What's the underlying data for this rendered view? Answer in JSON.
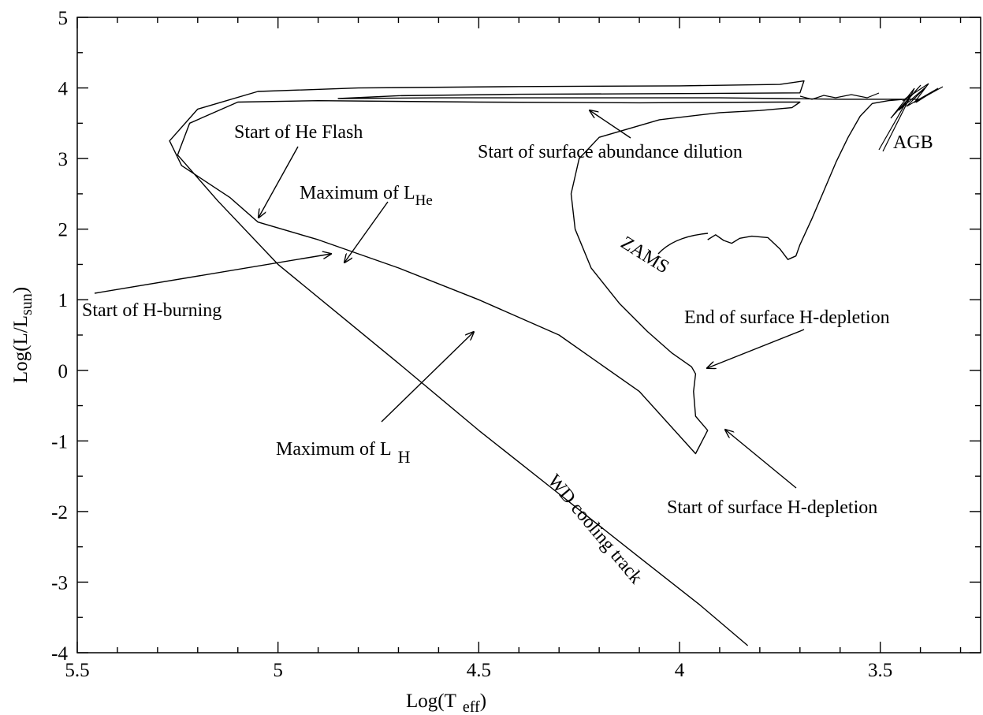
{
  "chart_data": {
    "type": "line",
    "xlim": [
      5.5,
      3.25
    ],
    "ylim": [
      -4,
      5
    ],
    "x_reversed": true,
    "grid": false,
    "xlabel": {
      "main": "Log(T",
      "sub": "eff",
      "close": ")"
    },
    "ylabel": {
      "main": "Log(L/L",
      "sub": "sun",
      "close": ")"
    },
    "x_ticks": [
      {
        "value": 5.5,
        "label": "5.5"
      },
      {
        "value": 5,
        "label": "5"
      },
      {
        "value": 4.5,
        "label": "4.5"
      },
      {
        "value": 4,
        "label": "4"
      },
      {
        "value": 3.5,
        "label": "3.5"
      }
    ],
    "y_ticks": [
      {
        "value": 5,
        "label": "5"
      },
      {
        "value": 4,
        "label": "4"
      },
      {
        "value": 3,
        "label": "3"
      },
      {
        "value": 2,
        "label": "2"
      },
      {
        "value": 1,
        "label": "1"
      },
      {
        "value": 0,
        "label": "0"
      },
      {
        "value": -1,
        "label": "-1"
      },
      {
        "value": -2,
        "label": "-2"
      },
      {
        "value": -3,
        "label": "-3"
      },
      {
        "value": -4,
        "label": "-4"
      }
    ],
    "series": [
      {
        "points": [
          [
            3.93,
            1.85
          ],
          [
            3.91,
            1.92
          ],
          [
            3.89,
            1.84
          ],
          [
            3.87,
            1.8
          ],
          [
            3.85,
            1.87
          ],
          [
            3.82,
            1.9
          ],
          [
            3.78,
            1.88
          ],
          [
            3.75,
            1.72
          ],
          [
            3.73,
            1.57
          ],
          [
            3.71,
            1.62
          ],
          [
            3.7,
            1.78
          ],
          [
            3.67,
            2.15
          ],
          [
            3.64,
            2.55
          ],
          [
            3.61,
            2.95
          ],
          [
            3.58,
            3.3
          ],
          [
            3.55,
            3.6
          ],
          [
            3.52,
            3.78
          ],
          [
            3.48,
            3.82
          ],
          [
            3.44,
            3.84
          ],
          [
            3.4,
            3.84
          ],
          [
            3.6,
            3.84
          ],
          [
            3.75,
            3.85
          ],
          [
            3.9,
            3.86
          ],
          [
            4.2,
            3.86
          ],
          [
            4.6,
            3.86
          ],
          [
            4.85,
            3.85
          ],
          [
            4.7,
            3.89
          ],
          [
            4.4,
            3.91
          ],
          [
            4.0,
            3.92
          ],
          [
            3.7,
            3.93
          ],
          [
            3.69,
            4.1
          ],
          [
            3.75,
            4.05
          ],
          [
            4.0,
            4.03
          ],
          [
            4.4,
            4.02
          ],
          [
            4.8,
            4.0
          ],
          [
            5.05,
            3.95
          ],
          [
            5.2,
            3.7
          ],
          [
            5.27,
            3.25
          ],
          [
            5.24,
            2.9
          ],
          [
            5.12,
            2.45
          ],
          [
            5.05,
            2.1
          ],
          [
            4.9,
            1.85
          ],
          [
            4.7,
            1.45
          ],
          [
            4.5,
            1.0
          ],
          [
            4.3,
            0.5
          ],
          [
            4.1,
            -0.3
          ],
          [
            3.96,
            -1.18
          ],
          [
            3.93,
            -0.85
          ],
          [
            3.96,
            -0.65
          ],
          [
            3.965,
            -0.3
          ],
          [
            3.96,
            -0.05
          ],
          [
            3.97,
            0.05
          ],
          [
            4.02,
            0.25
          ],
          [
            4.08,
            0.55
          ],
          [
            4.15,
            0.95
          ],
          [
            4.22,
            1.45
          ],
          [
            4.26,
            2.0
          ],
          [
            4.27,
            2.5
          ],
          [
            4.25,
            3.0
          ],
          [
            4.2,
            3.3
          ],
          [
            4.05,
            3.55
          ],
          [
            3.9,
            3.65
          ],
          [
            3.8,
            3.68
          ],
          [
            3.72,
            3.72
          ],
          [
            3.7,
            3.8
          ],
          [
            3.75,
            3.8
          ],
          [
            4.1,
            3.79
          ],
          [
            4.5,
            3.8
          ],
          [
            4.9,
            3.82
          ],
          [
            5.1,
            3.8
          ],
          [
            5.22,
            3.5
          ],
          [
            5.25,
            3.05
          ],
          [
            5.15,
            2.4
          ],
          [
            5.0,
            1.5
          ],
          [
            4.85,
            0.8
          ],
          [
            4.7,
            0.1
          ],
          [
            4.5,
            -0.85
          ],
          [
            4.3,
            -1.75
          ],
          [
            4.1,
            -2.65
          ],
          [
            3.95,
            -3.32
          ],
          [
            3.83,
            -3.9
          ]
        ]
      }
    ],
    "annotations": [
      {
        "text": "Start of He Flash"
      },
      {
        "text": "Maximum of L",
        "sub": "He"
      },
      {
        "text": "Start of H-burning"
      },
      {
        "text": "Maximum of L",
        "sub": "H"
      },
      {
        "text": "Start of surface abundance dilution"
      },
      {
        "text": "End of surface H-depletion"
      },
      {
        "text": "Start of surface H-depletion"
      },
      {
        "text": "AGB"
      },
      {
        "text": "ZAMS"
      },
      {
        "text": "WD cooling track"
      }
    ]
  }
}
